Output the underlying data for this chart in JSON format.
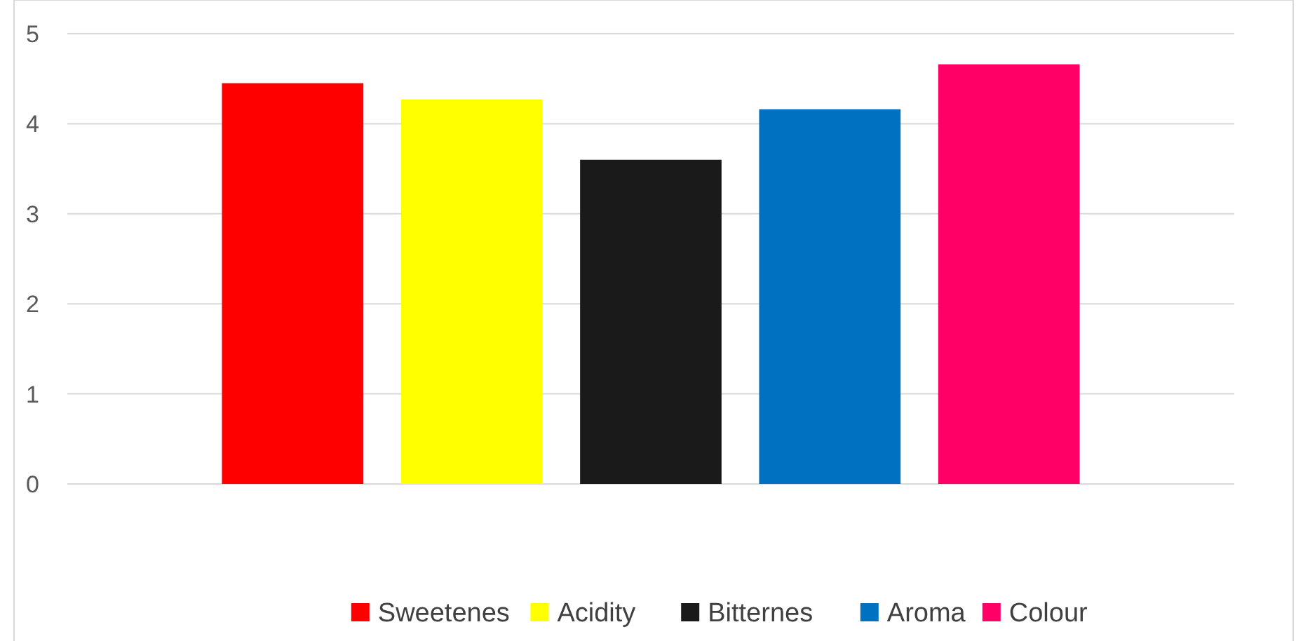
{
  "chart_data": {
    "type": "bar",
    "categories": [
      null
    ],
    "series": [
      {
        "name": "Sweetenes",
        "color": "#ff0000",
        "values": [
          4.45
        ]
      },
      {
        "name": "Acidity",
        "color": "#ffff00",
        "values": [
          4.27
        ]
      },
      {
        "name": "Bitternes",
        "color": "#1a1a1a",
        "values": [
          3.6
        ]
      },
      {
        "name": "Aroma",
        "color": "#0070c0",
        "values": [
          4.16
        ]
      },
      {
        "name": "Colour",
        "color": "#ff0066",
        "values": [
          4.66
        ]
      }
    ],
    "ylim": [
      0,
      5
    ],
    "yticks": [
      0,
      1,
      2,
      3,
      4,
      5
    ],
    "grid": "y",
    "legend": "bottom"
  }
}
